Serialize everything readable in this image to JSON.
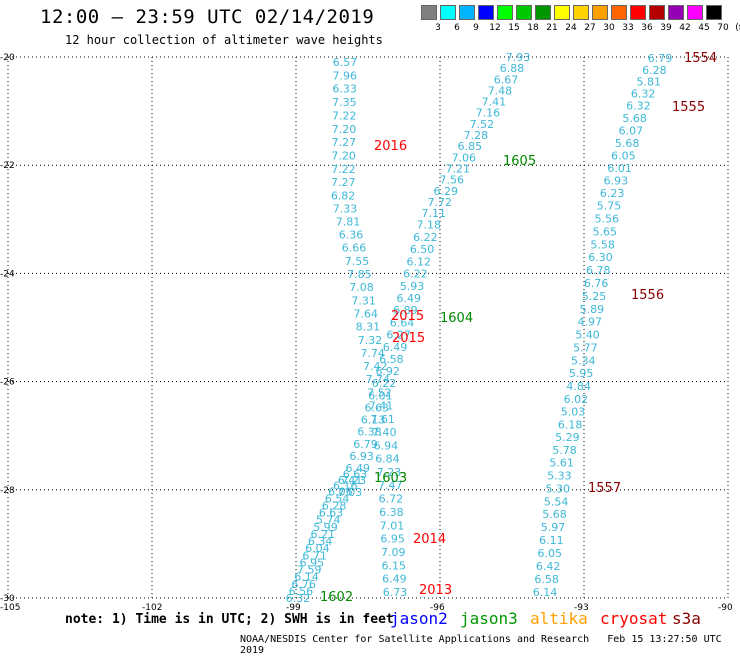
{
  "header": {
    "title": "12:00 – 23:59 UTC 02/14/2019",
    "subtitle": "12 hour collection of altimeter wave heights"
  },
  "color_scale": {
    "labels": [
      "3",
      "6",
      "9",
      "12",
      "15",
      "18",
      "21",
      "24",
      "27",
      "30",
      "33",
      "36",
      "39",
      "42",
      "45",
      "70",
      "(ft)"
    ],
    "colors": [
      "#808080",
      "#00ffff",
      "#00b4ff",
      "#0000ff",
      "#00ff00",
      "#00c800",
      "#009600",
      "#ffff00",
      "#ffd200",
      "#ffa000",
      "#ff6400",
      "#ff0000",
      "#b40000",
      "#9600b4",
      "#ff00ff",
      "#000000"
    ]
  },
  "map": {
    "lat_labels": [
      "-20",
      "-22",
      "-24",
      "-26",
      "-28",
      "-30"
    ],
    "lon_labels": [
      "-105",
      "-102",
      "-99",
      "-96",
      "-93",
      "-90"
    ],
    "lon_range": [
      -105,
      -90
    ],
    "lat_range": [
      -30,
      -20
    ]
  },
  "tracks": [
    {
      "name": "track-a",
      "color": "#3db8d8",
      "labels": [
        "6.57",
        "7.96",
        "6.33",
        "7.35",
        "7.22",
        "7.20",
        "7.27",
        "7.20",
        "7.22",
        "7.27",
        "6.82",
        "7.33",
        "7.81",
        "6.36",
        "6.66",
        "7.55",
        "7.85",
        "7.08",
        "7.31",
        "7.64",
        "8.31",
        "7.32",
        "7.74",
        "7.42",
        "7.74",
        "7.52",
        "7.41",
        "7.61",
        "7.40",
        "6.94",
        "6.84",
        "7.23",
        "7.47",
        "6.72",
        "6.38",
        "7.01",
        "6.95",
        "7.09",
        "6.15",
        "6.49",
        "6.73"
      ]
    },
    {
      "name": "track-b",
      "color": "#3db8d8",
      "labels": [
        "7.93",
        "6.88",
        "6.67",
        "7.48",
        "7.41",
        "7.16",
        "7.52",
        "7.28",
        "6.85",
        "7.06",
        "7.21",
        "7.56",
        "6.29",
        "7.72",
        "7.11",
        "7.18",
        "6.22",
        "6.50",
        "6.12",
        "6.22",
        "5.93",
        "6.49",
        "6.89",
        "6.64",
        "6.27",
        "6.49",
        "6.58",
        "6.92",
        "6.22",
        "6.01",
        "6.63",
        "6.13",
        "6.38",
        "6.79",
        "6.93",
        "6.49",
        "7.23",
        "7.03"
      ]
    },
    {
      "name": "track-c",
      "color": "#3db8d8",
      "labels": [
        "6.63",
        "6.41",
        "6.16",
        "6.06",
        "6.54",
        "6.28",
        "6.63",
        "5.74",
        "5.99",
        "6.21",
        "6.34",
        "6.04",
        "6.71",
        "6.95",
        "7.59",
        "6.14",
        "6.76",
        "6.56",
        "6.32"
      ]
    },
    {
      "name": "track-d",
      "color": "#3db8d8",
      "labels": [
        "6.79",
        "6.28",
        "5.81",
        "6.32",
        "6.32",
        "5.68",
        "6.07",
        "5.68",
        "6.05",
        "6.01",
        "6.93",
        "6.23",
        "5.75",
        "5.56",
        "5.65",
        "5.58",
        "6.30",
        "6.78",
        "6.76",
        "5.25",
        "5.89",
        "4.97",
        "5.40",
        "5.77",
        "5.34",
        "5.95",
        "4.84",
        "6.02",
        "5.03",
        "6.18",
        "5.29",
        "5.78",
        "5.61",
        "5.33",
        "5.30",
        "5.54",
        "5.68",
        "5.97",
        "6.11",
        "6.05",
        "6.42",
        "6.58",
        "6.14"
      ]
    }
  ],
  "pass_labels": [
    {
      "text": "1554",
      "color": "#8b0000"
    },
    {
      "text": "1555",
      "color": "#8b0000"
    },
    {
      "text": "2016",
      "color": "#ff0000"
    },
    {
      "text": "1605",
      "color": "#008800"
    },
    {
      "text": "1556",
      "color": "#8b0000"
    },
    {
      "text": "2015",
      "color": "#ff0000"
    },
    {
      "text": "1604",
      "color": "#008800"
    },
    {
      "text": "2015",
      "color": "#ff0000"
    },
    {
      "text": "1557",
      "color": "#8b0000"
    },
    {
      "text": "1603",
      "color": "#008800"
    },
    {
      "text": "2014",
      "color": "#ff0000"
    },
    {
      "text": "2013",
      "color": "#ff0000"
    },
    {
      "text": "1602",
      "color": "#008800"
    }
  ],
  "footer": {
    "note": "note: 1) Time is in UTC; 2) SWH is in feet",
    "legend": [
      {
        "text": "jason2",
        "color": "#0000ff"
      },
      {
        "text": "jason3",
        "color": "#009600"
      },
      {
        "text": "altika",
        "color": "#ffa000"
      },
      {
        "text": "cryosat",
        "color": "#ff0000"
      },
      {
        "text": "s3a",
        "color": "#8b0000"
      }
    ],
    "credit": "NOAA/NESDIS Center for Satellite Applications and Research",
    "timestamp": "Feb 15 13:27:50 UTC 2019"
  }
}
